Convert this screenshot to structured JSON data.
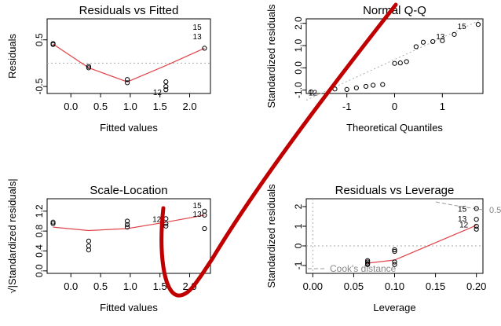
{
  "panels": [
    {
      "type": "scatter",
      "title": "Residuals vs Fitted",
      "xlabel": "Fitted values",
      "ylabel": "Residuals",
      "xlim": [
        -0.4,
        2.35
      ],
      "ylim": [
        -0.65,
        0.95
      ],
      "xticks": [
        {
          "v": 0.0,
          "label": "0.0"
        },
        {
          "v": 0.5,
          "label": "0.5"
        },
        {
          "v": 1.0,
          "label": "1.0"
        },
        {
          "v": 1.5,
          "label": "1.5"
        },
        {
          "v": 2.0,
          "label": "2.0"
        }
      ],
      "yticks": [
        {
          "v": -0.5,
          "label": "-0.5"
        },
        {
          "v": 0.5,
          "label": "0.5"
        }
      ],
      "hline": {
        "y": 0
      },
      "points": [
        [
          -0.3,
          0.42
        ],
        [
          -0.3,
          0.4
        ],
        [
          0.3,
          -0.07
        ],
        [
          0.3,
          -0.1
        ],
        [
          0.95,
          -0.35
        ],
        [
          0.95,
          -0.42
        ],
        [
          1.6,
          -0.4
        ],
        [
          1.6,
          -0.5
        ],
        [
          1.6,
          -0.57
        ],
        [
          2.25,
          0.32
        ]
      ],
      "smooth": [
        [
          -0.3,
          0.41
        ],
        [
          0.3,
          -0.1
        ],
        [
          0.95,
          -0.4
        ],
        [
          1.6,
          -0.05
        ],
        [
          2.25,
          0.32
        ]
      ],
      "labels": [
        {
          "x": 2.2,
          "y": 0.78,
          "text": "15"
        },
        {
          "x": 2.2,
          "y": 0.58,
          "text": "13"
        },
        {
          "x": 1.53,
          "y": -0.62,
          "text": "12"
        }
      ]
    },
    {
      "type": "scatter",
      "title": "Normal Q-Q",
      "xlabel": "Theoretical Quantiles",
      "ylabel": "Standardized residuals",
      "xlim": [
        -1.85,
        1.85
      ],
      "ylim": [
        -1.15,
        2.2
      ],
      "xticks": [
        {
          "v": -1,
          "label": "-1"
        },
        {
          "v": 0,
          "label": "0"
        },
        {
          "v": 1,
          "label": "1"
        }
      ],
      "yticks": [
        {
          "v": -1.0,
          "label": "-1.0"
        },
        {
          "v": 0.0,
          "label": "0.0"
        },
        {
          "v": 1.0,
          "label": "1.0"
        },
        {
          "v": 2.0,
          "label": "2.0"
        }
      ],
      "hline": null,
      "points": [
        [
          -1.75,
          -1.08
        ],
        [
          -1.25,
          -0.95
        ],
        [
          -1.0,
          -0.97
        ],
        [
          -0.8,
          -0.9
        ],
        [
          -0.6,
          -0.83
        ],
        [
          -0.45,
          -0.78
        ],
        [
          -0.25,
          -0.75
        ],
        [
          0.0,
          0.2
        ],
        [
          0.12,
          0.22
        ],
        [
          0.25,
          0.28
        ],
        [
          0.45,
          0.95
        ],
        [
          0.6,
          1.15
        ],
        [
          0.8,
          1.18
        ],
        [
          1.0,
          1.22
        ],
        [
          1.25,
          1.5
        ],
        [
          1.75,
          1.95
        ]
      ],
      "smooth": null,
      "labels": [
        {
          "x": -1.62,
          "y": -1.1,
          "text": "12"
        },
        {
          "x": 1.05,
          "y": 1.42,
          "text": "13"
        },
        {
          "x": 1.5,
          "y": 1.88,
          "text": "15"
        }
      ]
    },
    {
      "type": "scatter",
      "title": "Scale-Location",
      "xlabel": "Fitted values",
      "ylabel": "√|Standardized residuals|",
      "xlim": [
        -0.4,
        2.35
      ],
      "ylim": [
        -0.05,
        1.45
      ],
      "xticks": [
        {
          "v": 0.0,
          "label": "0.0"
        },
        {
          "v": 0.5,
          "label": "0.5"
        },
        {
          "v": 1.0,
          "label": "1.0"
        },
        {
          "v": 1.5,
          "label": "1.5"
        },
        {
          "v": 2.0,
          "label": "2.0"
        }
      ],
      "yticks": [
        {
          "v": 0.0,
          "label": "0.0"
        },
        {
          "v": 0.4,
          "label": "0.4"
        },
        {
          "v": 0.8,
          "label": "0.8"
        },
        {
          "v": 1.2,
          "label": "1.2"
        }
      ],
      "hline": null,
      "points": [
        [
          -0.3,
          0.98
        ],
        [
          -0.3,
          0.95
        ],
        [
          0.3,
          0.6
        ],
        [
          0.3,
          0.5
        ],
        [
          0.3,
          0.42
        ],
        [
          0.95,
          1.0
        ],
        [
          0.95,
          0.93
        ],
        [
          0.95,
          0.88
        ],
        [
          1.6,
          1.05
        ],
        [
          1.6,
          0.95
        ],
        [
          1.6,
          0.9
        ],
        [
          2.25,
          1.2
        ],
        [
          2.25,
          1.12
        ],
        [
          2.25,
          0.85
        ]
      ],
      "smooth": [
        [
          -0.3,
          0.88
        ],
        [
          0.3,
          0.81
        ],
        [
          0.95,
          0.85
        ],
        [
          1.6,
          0.98
        ],
        [
          2.25,
          1.12
        ]
      ],
      "labels": [
        {
          "x": 1.52,
          "y": 1.05,
          "text": "12"
        },
        {
          "x": 2.2,
          "y": 1.32,
          "text": "15"
        },
        {
          "x": 2.2,
          "y": 1.15,
          "text": "13"
        }
      ]
    },
    {
      "type": "scatter",
      "title": "Residuals vs Leverage",
      "xlabel": "Leverage",
      "ylabel": "Standardized residuals",
      "xlim": [
        -0.008,
        0.208
      ],
      "ylim": [
        -1.4,
        2.4
      ],
      "xticks": [
        {
          "v": 0.0,
          "label": "0.00"
        },
        {
          "v": 0.05,
          "label": "0.05"
        },
        {
          "v": 0.1,
          "label": "0.10"
        },
        {
          "v": 0.15,
          "label": "0.15"
        },
        {
          "v": 0.2,
          "label": "0.20"
        }
      ],
      "yticks": [
        {
          "v": -1,
          "label": "-1"
        },
        {
          "v": 0,
          "label": "0"
        },
        {
          "v": 1,
          "label": "1"
        },
        {
          "v": 2,
          "label": "2"
        }
      ],
      "hline": {
        "y": 0
      },
      "vline": {
        "x": 0
      },
      "points": [
        [
          0.067,
          -0.75
        ],
        [
          0.067,
          -0.82
        ],
        [
          0.067,
          -0.9
        ],
        [
          0.067,
          -0.95
        ],
        [
          0.1,
          -0.2
        ],
        [
          0.1,
          -0.28
        ],
        [
          0.1,
          -0.82
        ],
        [
          0.1,
          -0.95
        ],
        [
          0.2,
          1.9
        ],
        [
          0.2,
          1.35
        ],
        [
          0.2,
          1.0
        ],
        [
          0.2,
          0.85
        ]
      ],
      "smooth": [
        [
          0.067,
          -0.88
        ],
        [
          0.1,
          -0.72
        ],
        [
          0.2,
          1.05
        ]
      ],
      "labels": [
        {
          "x": 0.188,
          "y": 1.9,
          "text": "15"
        },
        {
          "x": 0.188,
          "y": 1.4,
          "text": "13"
        },
        {
          "x": 0.19,
          "y": 1.1,
          "text": "12"
        }
      ],
      "cooks": {
        "label": "Cook's distance",
        "level_label": "0.5"
      }
    }
  ],
  "annotation": {
    "color": "#c00000"
  }
}
